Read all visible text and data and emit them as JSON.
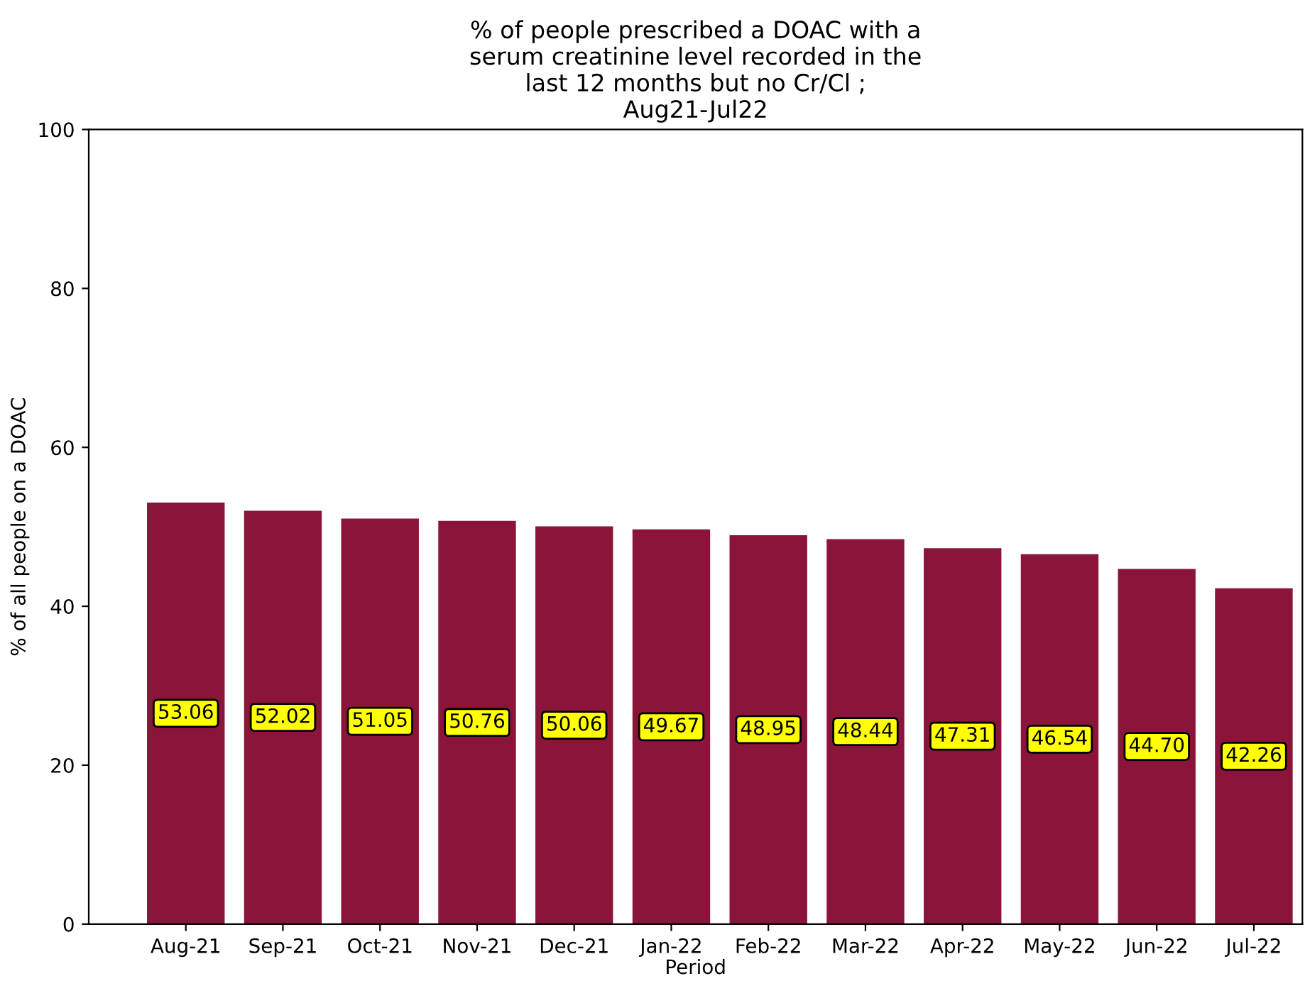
{
  "chart_data": {
    "type": "bar",
    "title": "% of people prescribed a DOAC with a\nserum creatinine level recorded in the\nlast 12 months but no Cr/Cl ;\nAug21-Jul22",
    "xlabel": "Period",
    "ylabel": "% of all people on a DOAC",
    "categories": [
      "Aug-21",
      "Sep-21",
      "Oct-21",
      "Nov-21",
      "Dec-21",
      "Jan-22",
      "Feb-22",
      "Mar-22",
      "Apr-22",
      "May-22",
      "Jun-22",
      "Jul-22"
    ],
    "values": [
      53.06,
      52.02,
      51.05,
      50.76,
      50.06,
      49.67,
      48.95,
      48.44,
      47.31,
      46.54,
      44.7,
      42.26
    ],
    "value_labels": [
      "53.06",
      "52.02",
      "51.05",
      "50.76",
      "50.06",
      "49.67",
      "48.95",
      "48.44",
      "47.31",
      "46.54",
      "44.70",
      "42.26"
    ],
    "color": "#8b1538",
    "ylim": [
      0,
      100
    ],
    "yticks": [
      0,
      20,
      40,
      60,
      80,
      100
    ],
    "grid": false
  }
}
